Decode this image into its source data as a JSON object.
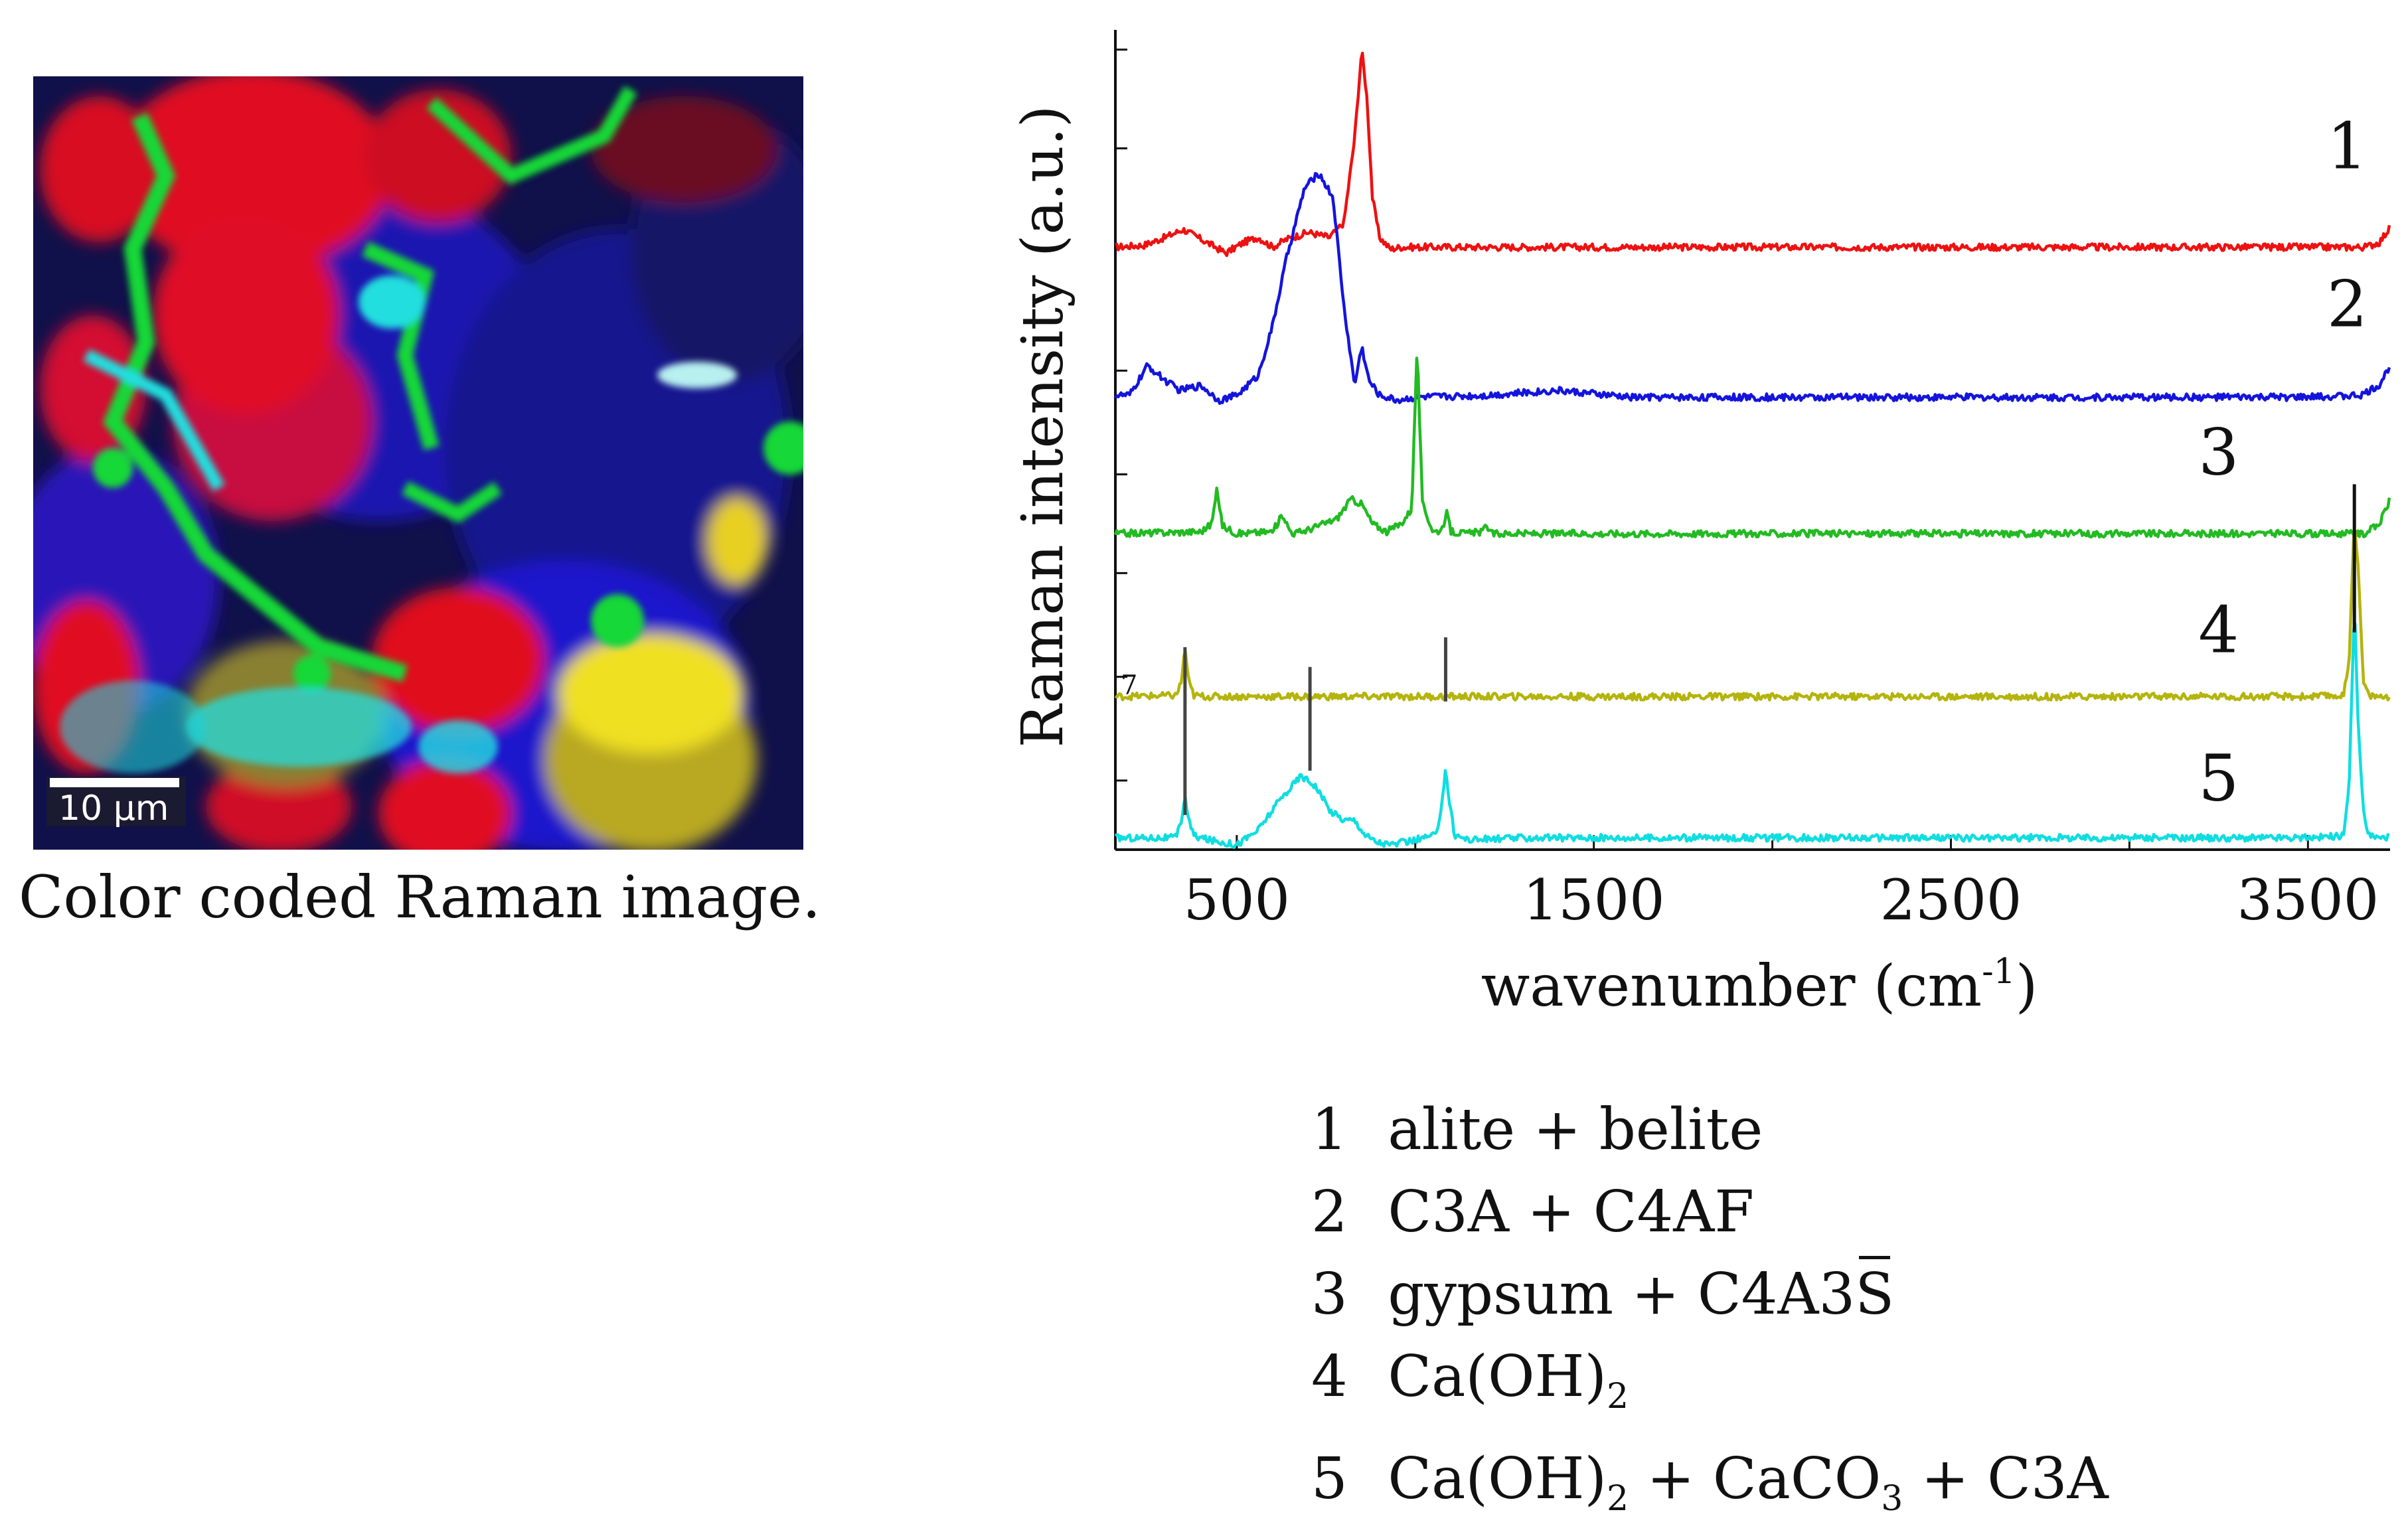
{
  "image": {
    "scale_bar_label": "10 µm",
    "caption": "Color coded Raman image.",
    "phase_colors": {
      "red": "#e01020",
      "blue": "#1a14cc",
      "green": "#18d838",
      "cyan": "#20dede",
      "yellow": "#f0e020",
      "dark": "#12124a"
    }
  },
  "chart_data": {
    "type": "line",
    "title": "",
    "xlabel": "wavenumber (cm",
    "xlabel_superscript": "-1",
    "xlabel_suffix": ")",
    "ylabel": "Raman intensity (a.u.)",
    "xlim": [
      160,
      3730
    ],
    "ylim": [
      0,
      8.3
    ],
    "x_ticks": [
      500,
      1500,
      2500,
      3500
    ],
    "x_tick_labels": [
      "500",
      "1500",
      "2500",
      "3500"
    ],
    "grid": false,
    "series": [
      {
        "name": "1",
        "color": "#ee1111",
        "baseline": 6.1,
        "line_x": [
          160,
          240,
          300,
          350,
          400,
          470,
          520,
          560,
          600,
          640,
          700,
          760,
          800,
          830,
          850,
          865,
          880,
          900,
          930,
          960,
          1000,
          1200,
          1500,
          2000,
          2500,
          3000,
          3500,
          3660,
          3700,
          3730
        ],
        "line_y": [
          6.1,
          6.12,
          6.2,
          6.28,
          6.18,
          6.04,
          6.15,
          6.2,
          6.1,
          6.18,
          6.25,
          6.2,
          6.35,
          7.2,
          8.1,
          7.6,
          6.6,
          6.2,
          6.08,
          6.1,
          6.1,
          6.1,
          6.1,
          6.1,
          6.1,
          6.1,
          6.1,
          6.1,
          6.15,
          6.3
        ]
      },
      {
        "name": "2",
        "color": "#1414dd",
        "baseline": 4.6,
        "line_x": [
          160,
          200,
          250,
          300,
          340,
          400,
          450,
          500,
          560,
          600,
          640,
          690,
          730,
          770,
          800,
          830,
          850,
          870,
          900,
          950,
          1000,
          1200,
          1400,
          1600,
          2000,
          2500,
          3000,
          3500,
          3650,
          3700,
          3730
        ],
        "line_y": [
          4.6,
          4.6,
          4.9,
          4.75,
          4.65,
          4.7,
          4.55,
          4.6,
          4.8,
          5.3,
          6.0,
          6.7,
          6.85,
          6.6,
          5.5,
          4.7,
          5.1,
          4.75,
          4.6,
          4.55,
          4.58,
          4.6,
          4.65,
          4.58,
          4.58,
          4.58,
          4.58,
          4.58,
          4.6,
          4.7,
          4.9
        ]
      },
      {
        "name": "3",
        "color": "#22bb22",
        "baseline": 3.2,
        "line_x": [
          160,
          400,
          430,
          445,
          460,
          500,
          600,
          630,
          645,
          660,
          700,
          780,
          820,
          850,
          880,
          920,
          960,
          990,
          1005,
          1020,
          1050,
          1080,
          1090,
          1100,
          1140,
          1190,
          1200,
          1210,
          1300,
          2000,
          3000,
          3660,
          3700,
          3730
        ],
        "line_y": [
          3.2,
          3.22,
          3.3,
          3.65,
          3.28,
          3.2,
          3.22,
          3.4,
          3.25,
          3.2,
          3.24,
          3.35,
          3.55,
          3.5,
          3.3,
          3.22,
          3.3,
          3.45,
          5.1,
          3.5,
          3.22,
          3.24,
          3.45,
          3.22,
          3.2,
          3.22,
          3.3,
          3.2,
          3.2,
          3.2,
          3.2,
          3.2,
          3.3,
          3.55
        ]
      },
      {
        "name": "4",
        "color": "#b4b40c",
        "baseline": 1.55,
        "line_x": [
          160,
          330,
          345,
          355,
          365,
          380,
          420,
          800,
          1100,
          1500,
          2000,
          2500,
          3000,
          3500,
          3600,
          3615,
          3630,
          3640,
          3655,
          3670,
          3700,
          3730
        ],
        "line_y": [
          1.55,
          1.56,
          1.7,
          2.05,
          1.7,
          1.56,
          1.55,
          1.55,
          1.55,
          1.55,
          1.55,
          1.55,
          1.55,
          1.55,
          1.56,
          1.9,
          3.35,
          2.9,
          1.7,
          1.56,
          1.55,
          1.55
        ]
      },
      {
        "name": "5",
        "color": "#10dde0",
        "baseline": 0.12,
        "line_x": [
          160,
          330,
          345,
          355,
          365,
          380,
          420,
          500,
          560,
          620,
          680,
          720,
          760,
          800,
          830,
          860,
          890,
          930,
          980,
          1060,
          1075,
          1085,
          1095,
          1110,
          1150,
          1300,
          1500,
          2000,
          2500,
          3000,
          3500,
          3600,
          3615,
          3630,
          3640,
          3655,
          3670,
          3700,
          3730
        ],
        "line_y": [
          0.12,
          0.12,
          0.3,
          0.55,
          0.3,
          0.14,
          0.1,
          0.05,
          0.2,
          0.5,
          0.75,
          0.65,
          0.4,
          0.3,
          0.3,
          0.15,
          0.08,
          0.05,
          0.08,
          0.15,
          0.5,
          0.82,
          0.5,
          0.15,
          0.1,
          0.12,
          0.12,
          0.12,
          0.12,
          0.12,
          0.12,
          0.14,
          0.6,
          2.5,
          1.3,
          0.4,
          0.15,
          0.12,
          0.12
        ]
      }
    ],
    "marker_lines": [
      {
        "x": 355,
        "y_from": 0.35,
        "y_to": 2.05,
        "color": "#444444"
      },
      {
        "x": 705,
        "y_from": 0.8,
        "y_to": 1.85,
        "color": "#444444"
      },
      {
        "x": 1085,
        "y_from": 1.5,
        "y_to": 2.15,
        "color": "#444444"
      },
      {
        "x": 3630,
        "y_from": 2.2,
        "y_to": 3.7,
        "color": "#111111"
      }
    ],
    "series_labels": [
      {
        "text": "1",
        "x": 3610,
        "y": 6.9
      },
      {
        "text": "2",
        "x": 3610,
        "y": 5.3
      },
      {
        "text": "3",
        "x": 3250,
        "y": 3.8
      },
      {
        "text": "4",
        "x": 3250,
        "y": 2.0
      },
      {
        "text": "5",
        "x": 3250,
        "y": 0.5
      }
    ],
    "left_axis_ticks": [
      0.7,
      1.75,
      2.8,
      3.8,
      4.85,
      6.1,
      7.1,
      8.1
    ],
    "stray_mark": "7"
  },
  "legend": {
    "rows": [
      {
        "num": "1",
        "text": "alite + belite"
      },
      {
        "num": "2",
        "text": "C3A + C4AF"
      },
      {
        "num": "3",
        "text": "gypsum + C4A3",
        "overline": "S"
      },
      {
        "num": "4",
        "text": "Ca(OH)",
        "sub": "2"
      },
      {
        "num": "5",
        "parts": [
          "Ca(OH)",
          "2",
          " + CaCO",
          "3",
          " + C3A"
        ]
      }
    ]
  }
}
